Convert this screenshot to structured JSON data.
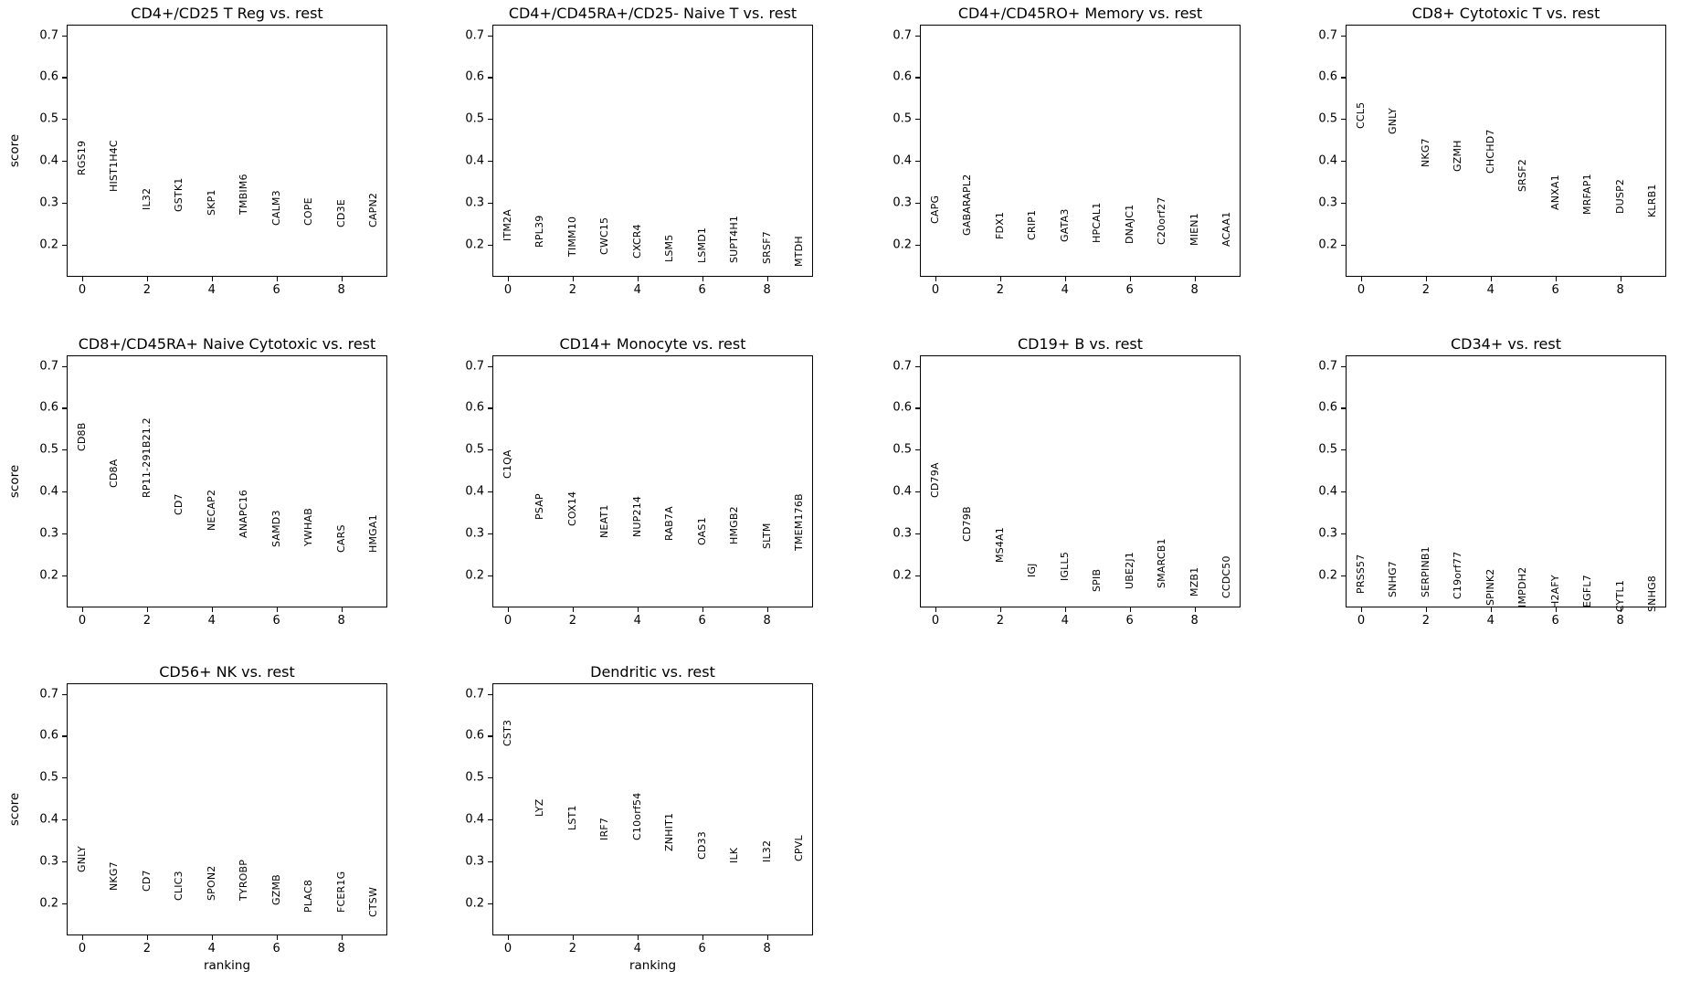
{
  "figure": {
    "background": "#ffffff",
    "text_color": "#000000",
    "ylabel": "score",
    "xlabel": "ranking",
    "yticks": [
      0.2,
      0.3,
      0.4,
      0.5,
      0.6,
      0.7
    ],
    "xticks": [
      0,
      2,
      4,
      6,
      8
    ],
    "ylim": [
      0.121,
      0.723
    ],
    "xlim": [
      -0.45,
      9.45
    ],
    "grid": false,
    "note": "x position of each gene label is its rank index 0-9; label bottom anchored at score"
  },
  "chart_data": [
    {
      "type": "scatter",
      "title": "CD4+/CD25 T Reg vs. rest",
      "show_ylabel": true,
      "show_xlabel": false,
      "genes": [
        "RGS19",
        "HIST1H4C",
        "IL32",
        "GSTK1",
        "SKP1",
        "TMBIM6",
        "CALM3",
        "COPE",
        "CD3E",
        "CAPN2"
      ],
      "scores": [
        0.366,
        0.326,
        0.282,
        0.277,
        0.269,
        0.271,
        0.245,
        0.246,
        0.242,
        0.24
      ]
    },
    {
      "type": "scatter",
      "title": "CD4+/CD45RA+/CD25- Naive T vs. rest",
      "show_ylabel": false,
      "show_xlabel": false,
      "genes": [
        "ITM2A",
        "RPL39",
        "TIMM10",
        "CWC15",
        "CXCR4",
        "LSM5",
        "LSMD1",
        "SUPT4H1",
        "SRSF7",
        "MTDH"
      ],
      "scores": [
        0.209,
        0.193,
        0.172,
        0.175,
        0.167,
        0.158,
        0.155,
        0.156,
        0.153,
        0.147
      ]
    },
    {
      "type": "scatter",
      "title": "CD4+/CD45RO+ Memory vs. rest",
      "show_ylabel": false,
      "show_xlabel": false,
      "genes": [
        "CAPG",
        "GABARAPL2",
        "FDX1",
        "CRIP1",
        "GATA3",
        "HPCAL1",
        "DNAJC1",
        "C20orf27",
        "MIEN1",
        "ACAA1"
      ],
      "scores": [
        0.25,
        0.222,
        0.213,
        0.21,
        0.207,
        0.204,
        0.201,
        0.2,
        0.198,
        0.196
      ]
    },
    {
      "type": "scatter",
      "title": "CD8+ Cytotoxic T vs. rest",
      "show_ylabel": false,
      "show_xlabel": false,
      "genes": [
        "CCL5",
        "GNLY",
        "NKG7",
        "GZMH",
        "CHCHD7",
        "SRSF2",
        "ANXA1",
        "MRFAP1",
        "DUSP2",
        "KLRB1"
      ],
      "scores": [
        0.477,
        0.463,
        0.385,
        0.373,
        0.37,
        0.327,
        0.282,
        0.272,
        0.274,
        0.264
      ]
    },
    {
      "type": "scatter",
      "title": "CD8+/CD45RA+ Naive Cytotoxic vs. rest",
      "show_ylabel": true,
      "show_xlabel": false,
      "genes": [
        "CD8B",
        "CD8A",
        "RP11-291B21.2",
        "CD7",
        "NECAP2",
        "ANAPC16",
        "SAMD3",
        "YWHAB",
        "CARS",
        "HMGA1"
      ],
      "scores": [
        0.497,
        0.409,
        0.384,
        0.344,
        0.307,
        0.289,
        0.267,
        0.269,
        0.255,
        0.253
      ]
    },
    {
      "type": "scatter",
      "title": "CD14+ Monocyte vs. rest",
      "show_ylabel": false,
      "show_xlabel": false,
      "genes": [
        "C1QA",
        "PSAP",
        "COX14",
        "NEAT1",
        "NUP214",
        "RAB7A",
        "OAS1",
        "HMGB2",
        "SLTM",
        "TMEM176B"
      ],
      "scores": [
        0.431,
        0.333,
        0.318,
        0.289,
        0.291,
        0.283,
        0.271,
        0.274,
        0.263,
        0.258
      ]
    },
    {
      "type": "scatter",
      "title": "CD19+ B vs. rest",
      "show_ylabel": false,
      "show_xlabel": false,
      "genes": [
        "CD79A",
        "CD79B",
        "MS4A1",
        "IGJ",
        "IGLL5",
        "SPIB",
        "UBE2J1",
        "SMARCB1",
        "MZB1",
        "CCDC50"
      ],
      "scores": [
        0.385,
        0.28,
        0.229,
        0.195,
        0.186,
        0.161,
        0.166,
        0.168,
        0.15,
        0.145
      ]
    },
    {
      "type": "scatter",
      "title": "CD34+ vs. rest",
      "show_ylabel": false,
      "show_xlabel": false,
      "genes": [
        "PRSS57",
        "SNHG7",
        "SERPINB1",
        "C19orf77",
        "SPINK2",
        "IMPDH2",
        "H2AFY",
        "EGFL7",
        "CYTL1",
        "SNHG8"
      ],
      "scores": [
        0.155,
        0.148,
        0.148,
        0.143,
        0.127,
        0.124,
        0.121,
        0.124,
        0.112,
        0.112
      ]
    },
    {
      "type": "scatter",
      "title": "CD56+ NK vs. rest",
      "show_ylabel": true,
      "show_xlabel": true,
      "genes": [
        "GNLY",
        "NKG7",
        "CD7",
        "CLIC3",
        "SPON2",
        "TYROBP",
        "GZMB",
        "PLAC8",
        "FCER1G",
        "CTSW"
      ],
      "scores": [
        0.274,
        0.229,
        0.227,
        0.205,
        0.207,
        0.205,
        0.196,
        0.178,
        0.177,
        0.167
      ]
    },
    {
      "type": "scatter",
      "title": "Dendritic vs. rest",
      "show_ylabel": false,
      "show_xlabel": true,
      "genes": [
        "CST3",
        "LYZ",
        "LST1",
        "IRF7",
        "C10orf54",
        "ZNHIT1",
        "CD33",
        "ILK",
        "IL32",
        "CPVL"
      ],
      "scores": [
        0.574,
        0.406,
        0.373,
        0.349,
        0.349,
        0.324,
        0.304,
        0.295,
        0.297,
        0.3
      ]
    }
  ]
}
